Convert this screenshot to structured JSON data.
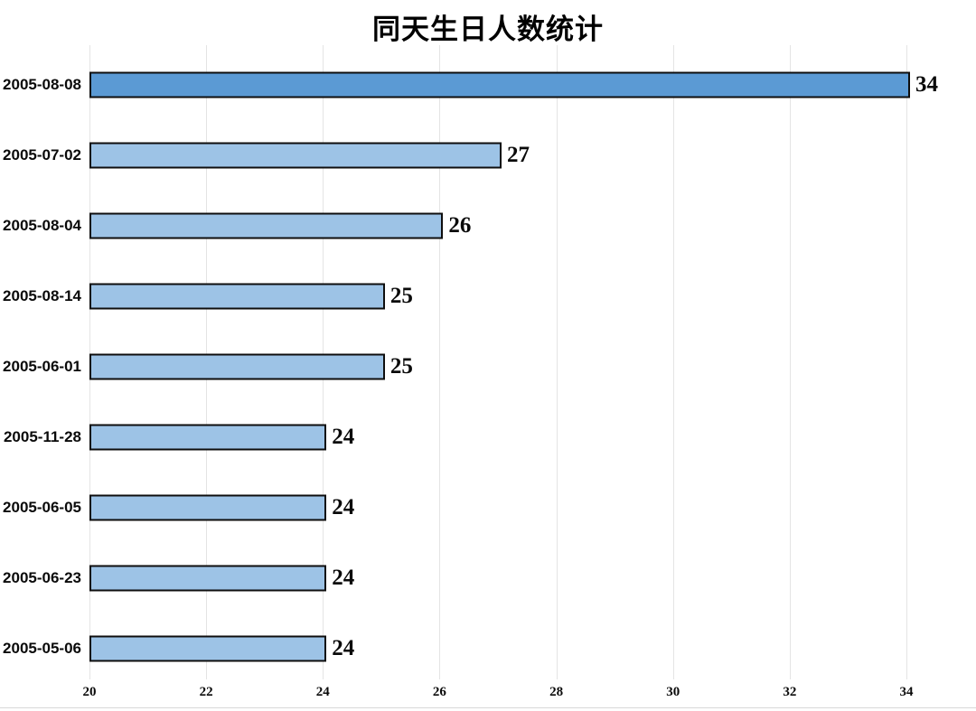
{
  "title": "同天生日人数统计",
  "colors": {
    "bar_highlight": "#5B9AD4",
    "bar_normal": "#9DC3E6",
    "bar_border": "#0e0e0e",
    "gridline": "#e4e4e4",
    "text": "#0a0a0a",
    "bottom_line": "#d8d8d8"
  },
  "chart_data": {
    "type": "bar",
    "orientation": "horizontal",
    "title": "同天生日人数统计",
    "categories": [
      "2005-08-08",
      "2005-07-02",
      "2005-08-04",
      "2005-08-14",
      "2005-06-01",
      "2005-11-28",
      "2005-06-05",
      "2005-06-23",
      "2005-05-06"
    ],
    "values": [
      34,
      27,
      26,
      25,
      25,
      24,
      24,
      24,
      24
    ],
    "value_labels": [
      "34",
      "27",
      "26",
      "25",
      "25",
      "24",
      "24",
      "24",
      "24"
    ],
    "xlabel": "",
    "ylabel": "",
    "xlim": [
      20,
      34
    ],
    "xticks": [
      20,
      22,
      24,
      26,
      28,
      30,
      32,
      34
    ],
    "xtick_labels": [
      "20",
      "22",
      "24",
      "26",
      "28",
      "30",
      "32",
      "34"
    ],
    "grid": "vertical",
    "legend": "none",
    "highlighted_index": 0
  }
}
